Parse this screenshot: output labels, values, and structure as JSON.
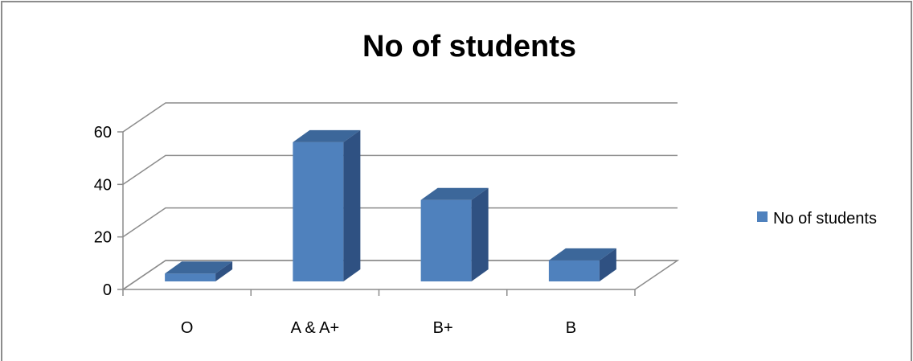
{
  "chart_data": {
    "type": "bar",
    "title": "No of students",
    "xlabel": "",
    "ylabel": "",
    "categories": [
      "O",
      "A & A+",
      "B+",
      "B"
    ],
    "series": [
      {
        "name": "No of students",
        "values": [
          3,
          53,
          31,
          8
        ]
      }
    ],
    "ylim": [
      0,
      60
    ],
    "yticks": [
      "0",
      "20",
      "40",
      "60"
    ],
    "grid": true,
    "legend_position": "right",
    "style": "3d-column",
    "colors": {
      "bar_front": "#4f81bd",
      "bar_top": "#3c679a",
      "bar_side": "#2f5182",
      "grid": "#8c8c8c",
      "frame": "#8c8c8c"
    }
  }
}
